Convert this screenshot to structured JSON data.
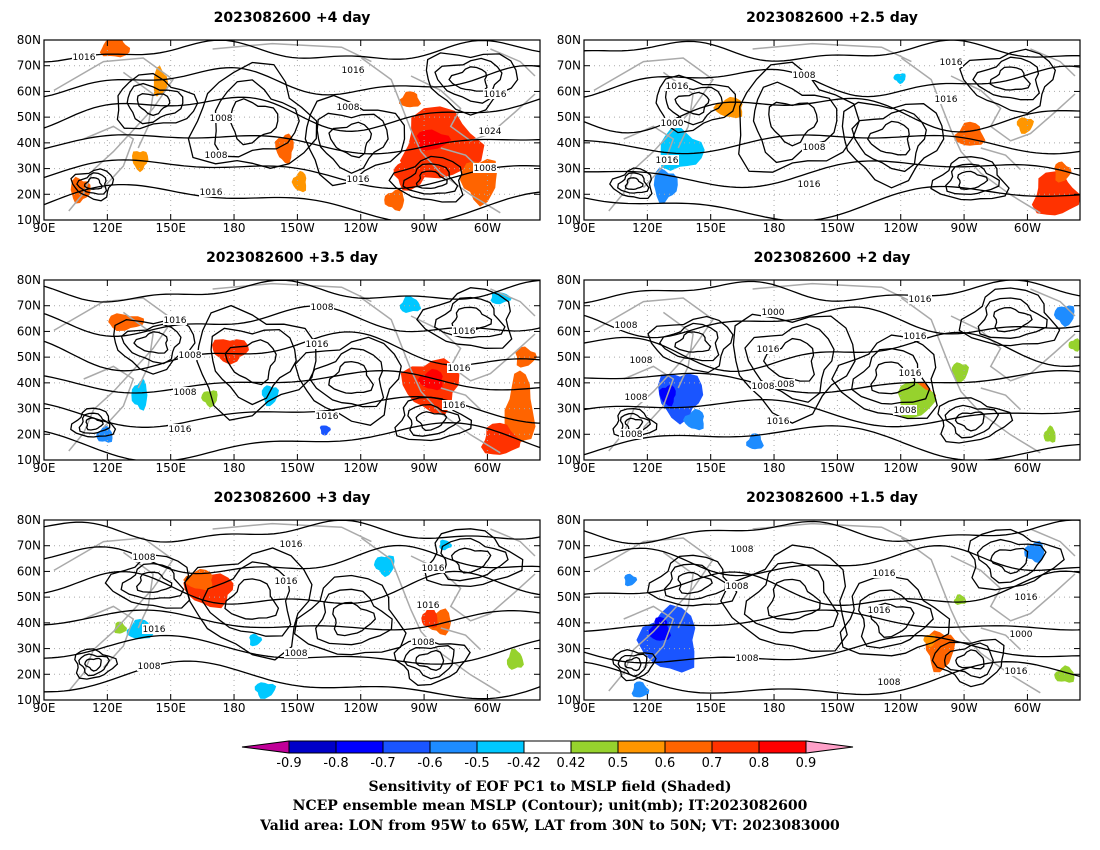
{
  "panels": [
    {
      "title": "2023082600  +4 day",
      "contour_labels": [
        "1016",
        "1008",
        "1016",
        "1016",
        "1008",
        "1016",
        "1024",
        "1016",
        "1008",
        "1008"
      ]
    },
    {
      "title": "2023082600  +2.5 day",
      "contour_labels": [
        "1016",
        "1008",
        "1016",
        "1000",
        "1016",
        "1016",
        "1016",
        "1008"
      ]
    },
    {
      "title": "2023082600  +3.5 day",
      "contour_labels": [
        "1008",
        "1016",
        "1016",
        "1008",
        "1008",
        "1016",
        "1016",
        "1016",
        "1016",
        "1016"
      ]
    },
    {
      "title": "2023082600  +2 day",
      "contour_labels": [
        "1008",
        "1016",
        "1008",
        "1016",
        "1016",
        "1008",
        "1000",
        "1016",
        "1008",
        "1016",
        "1008",
        "1008",
        "1008"
      ]
    },
    {
      "title": "2023082600  +3 day",
      "contour_labels": [
        "1008",
        "1016",
        "1016",
        "1016",
        "1016",
        "1008",
        "1016",
        "1008",
        "1008"
      ]
    },
    {
      "title": "2023082600  +1.5 day",
      "contour_labels": [
        "1008",
        "1016",
        "1008",
        "1016",
        "1000",
        "1008",
        "1016",
        "1016",
        "1008"
      ]
    }
  ],
  "axes": {
    "lat_labels": [
      "80N",
      "70N",
      "60N",
      "50N",
      "40N",
      "30N",
      "20N",
      "10N"
    ],
    "lon_labels": [
      "90E",
      "120E",
      "150E",
      "180",
      "150W",
      "120W",
      "90W",
      "60W"
    ],
    "lat_range": [
      10,
      80
    ],
    "lon_range": [
      90,
      325
    ]
  },
  "colorbar": {
    "labels": [
      "-0.9",
      "-0.8",
      "-0.7",
      "-0.6",
      "-0.5",
      "-0.42",
      "0.42",
      "0.5",
      "0.6",
      "0.7",
      "0.8",
      "0.9"
    ],
    "colors": [
      "#c00098",
      "#0000c8",
      "#0000ff",
      "#1a55ff",
      "#1e8cff",
      "#00c8ff",
      "#ffffff",
      "#96d22d",
      "#ff9600",
      "#ff6400",
      "#ff3200",
      "#ff0000",
      "#ffa0c8"
    ]
  },
  "footer": {
    "line1": "Sensitivity of EOF PC1 to MSLP field (Shaded)",
    "line2": "NCEP ensemble mean MSLP (Contour); unit(mb); IT:2023082600",
    "line3": "Valid area: LON from 95W to 65W, LAT from 30N to 50N; VT: 2023083000"
  }
}
